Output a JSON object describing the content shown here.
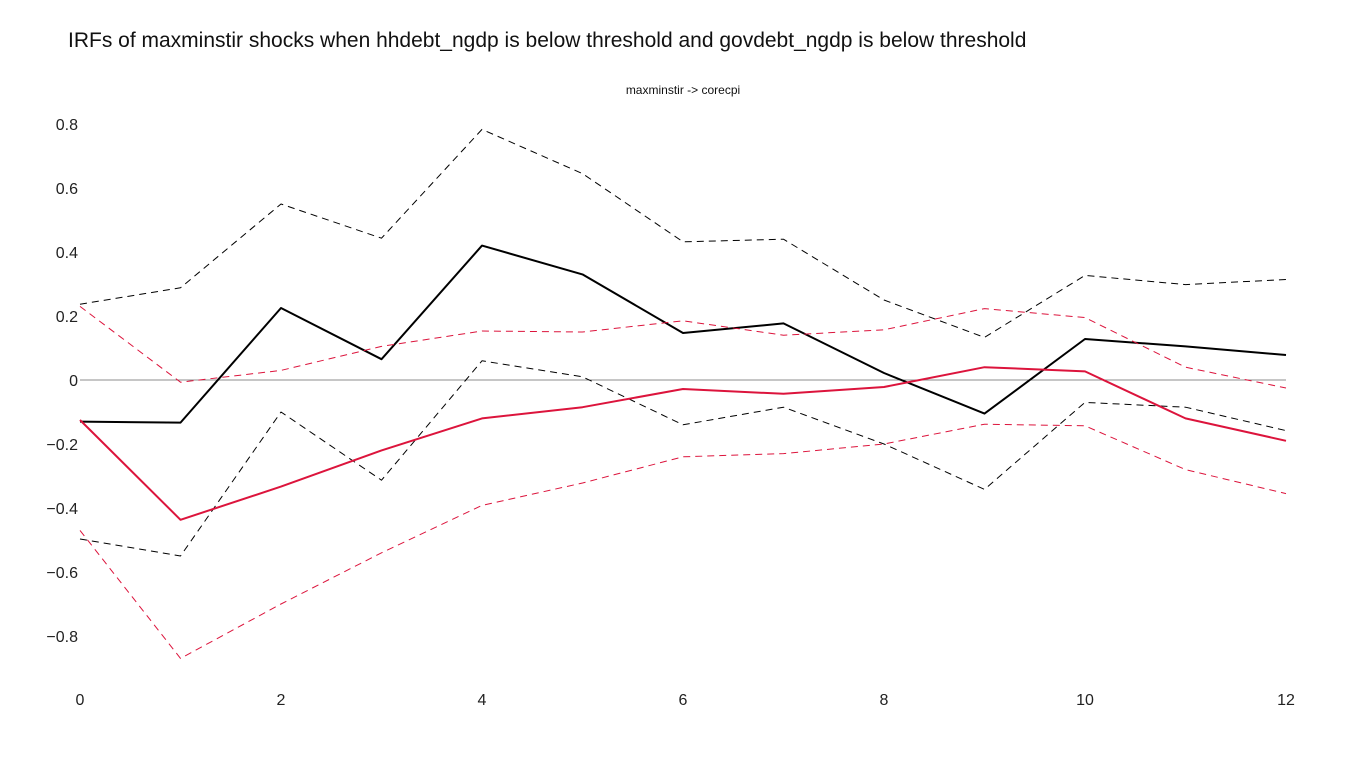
{
  "title": "IRFs of maxminstir shocks when hhdebt_ngdp is below threshold and govdebt_ngdp is below threshold",
  "chart_data": {
    "type": "line",
    "subtitle": "maxminstir -> corecpi",
    "xlabel": "",
    "ylabel": "",
    "xlim": [
      0,
      12
    ],
    "ylim": [
      -0.95,
      0.8
    ],
    "x_ticks": [
      0,
      2,
      4,
      6,
      8,
      10,
      12
    ],
    "y_ticks": [
      0.8,
      0.6,
      0.4,
      0.2,
      0,
      -0.2,
      -0.4,
      -0.6,
      -0.8
    ],
    "y_tick_labels": [
      "0.8",
      "0.6",
      "0.4",
      "0.2",
      "0",
      "−0.2",
      "−0.4",
      "−0.6",
      "−0.8"
    ],
    "grid": false,
    "zero_line": true,
    "legend": "none",
    "x": [
      0,
      1,
      2,
      3,
      4,
      5,
      6,
      7,
      8,
      9,
      10,
      11,
      12
    ],
    "series": [
      {
        "color": "#000000",
        "dash": "solid",
        "width": 2,
        "values": [
          -0.13,
          -0.133,
          0.225,
          0.065,
          0.42,
          0.33,
          0.147,
          0.177,
          0.022,
          -0.105,
          0.128,
          0.105,
          0.078
        ]
      },
      {
        "color": "#000000",
        "dash": "dashed",
        "width": 1,
        "values": [
          0.237,
          0.288,
          0.55,
          0.443,
          0.783,
          0.645,
          0.432,
          0.44,
          0.25,
          0.133,
          0.327,
          0.298,
          0.314
        ]
      },
      {
        "color": "#000000",
        "dash": "dashed",
        "width": 1,
        "values": [
          -0.497,
          -0.55,
          -0.1,
          -0.313,
          0.06,
          0.01,
          -0.14,
          -0.085,
          -0.2,
          -0.342,
          -0.07,
          -0.085,
          -0.158
        ]
      },
      {
        "color": "#dc143c",
        "dash": "solid",
        "width": 2,
        "values": [
          -0.125,
          -0.437,
          -0.333,
          -0.22,
          -0.12,
          -0.085,
          -0.028,
          -0.043,
          -0.022,
          0.04,
          0.027,
          -0.12,
          -0.19
        ]
      },
      {
        "color": "#dc143c",
        "dash": "dashed",
        "width": 1,
        "values": [
          0.23,
          -0.007,
          0.03,
          0.105,
          0.153,
          0.15,
          0.185,
          0.14,
          0.157,
          0.223,
          0.195,
          0.04,
          -0.025
        ]
      },
      {
        "color": "#dc143c",
        "dash": "dashed",
        "width": 1,
        "values": [
          -0.47,
          -0.87,
          -0.7,
          -0.54,
          -0.392,
          -0.322,
          -0.24,
          -0.23,
          -0.2,
          -0.138,
          -0.143,
          -0.28,
          -0.355
        ]
      }
    ]
  }
}
